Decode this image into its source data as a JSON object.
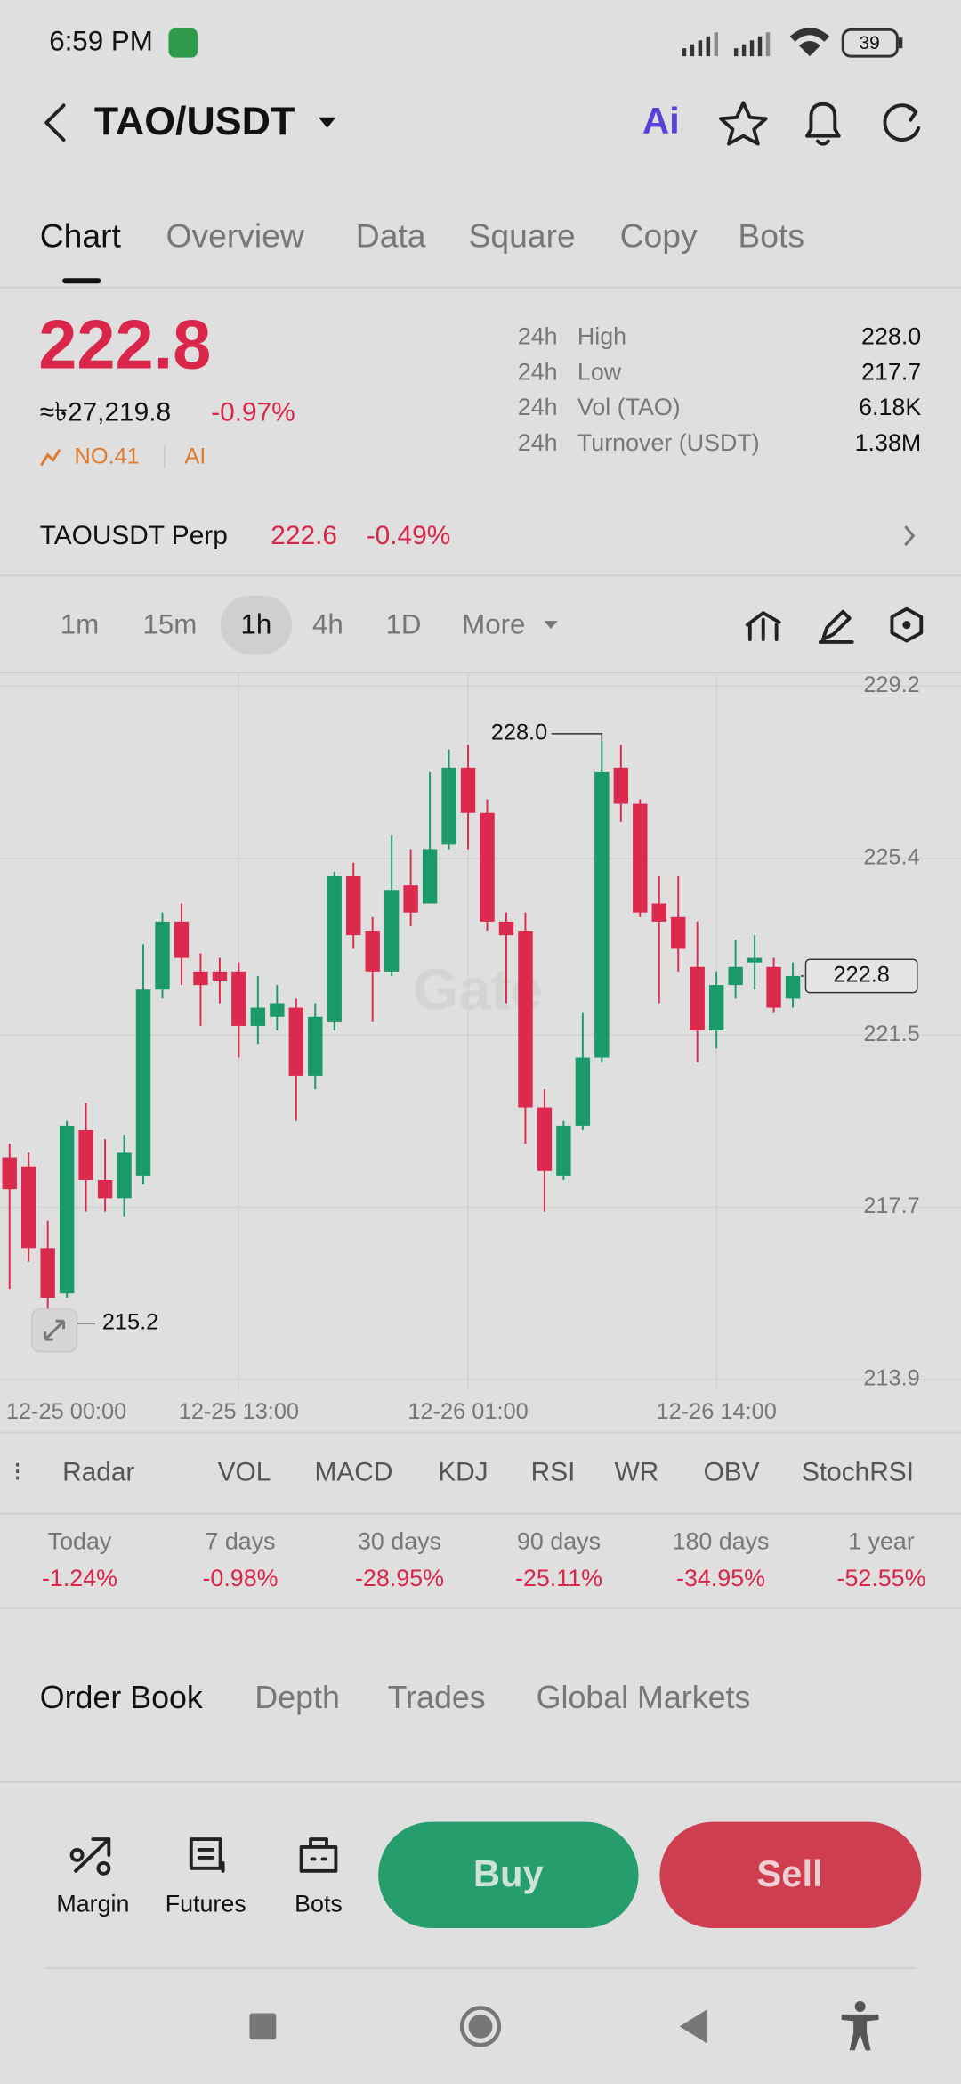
{
  "status_bar": {
    "time": "6:59 PM",
    "battery": "39"
  },
  "header": {
    "pair": "TAO/USDT",
    "ai": "Ai"
  },
  "tabs": [
    "Chart",
    "Overview",
    "Data",
    "Square",
    "Copy",
    "Bots"
  ],
  "price": {
    "last": "222.8",
    "fiat": "≈৳27,219.8",
    "change": "-0.97%",
    "rank": "NO.41",
    "ai": "AI"
  },
  "stats": [
    {
      "period": "24h",
      "name": "High",
      "value": "228.0"
    },
    {
      "period": "24h",
      "name": "Low",
      "value": "217.7"
    },
    {
      "period": "24h",
      "name": "Vol (TAO)",
      "value": "6.18K"
    },
    {
      "period": "24h",
      "name": "Turnover (USDT)",
      "value": "1.38M"
    }
  ],
  "perp": {
    "name": "TAOUSDT Perp",
    "price": "222.6",
    "change": "-0.49%"
  },
  "intervals": [
    "1m",
    "15m",
    "1h",
    "4h",
    "1D",
    "More"
  ],
  "chart_data": {
    "type": "candlestick",
    "watermark": "Gate",
    "up_color": "#1a9a68",
    "down_color": "#dc2a4f",
    "grid": true,
    "x": [
      0,
      1,
      2,
      3,
      4,
      5,
      6,
      7,
      8,
      9,
      10,
      11,
      12,
      13,
      14,
      15,
      16,
      17,
      18,
      19,
      20,
      21,
      22,
      23,
      24,
      25,
      26,
      27,
      28,
      29,
      30,
      31,
      32,
      33,
      34,
      35,
      36,
      37,
      38,
      39,
      40,
      41
    ],
    "open": [
      218.8,
      218.6,
      216.8,
      215.8,
      219.4,
      218.3,
      217.9,
      218.4,
      222.5,
      224.0,
      222.9,
      222.9,
      222.9,
      221.7,
      221.9,
      222.1,
      220.6,
      221.8,
      225.0,
      223.8,
      222.9,
      224.8,
      224.4,
      225.7,
      227.4,
      226.4,
      224.0,
      223.8,
      219.9,
      218.4,
      219.5,
      221.0,
      227.4,
      226.6,
      224.4,
      224.1,
      223.0,
      221.6,
      222.6,
      223.1,
      223.0,
      222.3
    ],
    "high": [
      219.1,
      218.9,
      217.4,
      219.6,
      220.0,
      219.2,
      219.3,
      223.5,
      224.2,
      224.4,
      223.3,
      223.2,
      223.1,
      222.8,
      222.6,
      222.3,
      222.2,
      225.1,
      225.3,
      224.1,
      225.9,
      225.6,
      227.3,
      227.8,
      227.9,
      226.7,
      224.2,
      224.2,
      220.3,
      219.6,
      222.0,
      228.0,
      227.9,
      226.7,
      225.0,
      225.0,
      224.0,
      222.9,
      223.6,
      223.7,
      223.2,
      223.1
    ],
    "low": [
      215.9,
      216.5,
      215.2,
      215.7,
      217.6,
      217.6,
      217.5,
      218.2,
      222.3,
      222.6,
      221.7,
      222.2,
      221.0,
      221.3,
      221.6,
      219.6,
      220.3,
      221.6,
      223.4,
      221.8,
      222.8,
      223.9,
      224.4,
      225.6,
      225.6,
      223.8,
      222.2,
      219.1,
      217.6,
      218.3,
      219.4,
      220.9,
      226.2,
      224.1,
      222.2,
      222.9,
      220.9,
      221.2,
      222.3,
      222.5,
      222.0,
      222.1
    ],
    "close": [
      218.1,
      216.8,
      215.7,
      219.5,
      218.3,
      217.9,
      218.9,
      222.5,
      224.0,
      223.2,
      222.6,
      222.7,
      221.7,
      222.1,
      222.2,
      220.6,
      221.9,
      225.0,
      223.7,
      222.9,
      224.7,
      224.2,
      225.6,
      227.4,
      226.4,
      224.0,
      223.7,
      219.9,
      218.5,
      219.5,
      221.0,
      227.3,
      226.6,
      224.2,
      224.0,
      223.4,
      221.6,
      222.6,
      223.0,
      223.2,
      222.1,
      222.8
    ],
    "xlim": [
      -0.5,
      49.8
    ],
    "xticks": [
      {
        "value": -1,
        "label": "12-25 00:00"
      },
      {
        "value": 12,
        "label": "12-25 13:00"
      },
      {
        "value": 24,
        "label": "12-26 01:00"
      },
      {
        "value": 37,
        "label": "12-26 14:00"
      }
    ],
    "ylim": [
      213.9,
      229.2
    ],
    "yticks": [
      229.2,
      225.4,
      221.5,
      217.7,
      213.9
    ],
    "high_label": {
      "value": 228.0,
      "label": "228.0"
    },
    "low_label": {
      "value": 215.2,
      "label": "215.2"
    },
    "last_price": {
      "value": 222.8,
      "label": "222.8"
    }
  },
  "indicators": [
    "Radar",
    "VOL",
    "MACD",
    "KDJ",
    "RSI",
    "WR",
    "OBV",
    "StochRSI"
  ],
  "performance": [
    {
      "period": "Today",
      "change": "-1.24%"
    },
    {
      "period": "7 days",
      "change": "-0.98%"
    },
    {
      "period": "30 days",
      "change": "-28.95%"
    },
    {
      "period": "90 days",
      "change": "-25.11%"
    },
    {
      "period": "180 days",
      "change": "-34.95%"
    },
    {
      "period": "1 year",
      "change": "-52.55%"
    }
  ],
  "book_tabs": [
    "Order Book",
    "Depth",
    "Trades",
    "Global Markets"
  ],
  "actions": [
    "Margin",
    "Futures",
    "Bots"
  ],
  "buy": "Buy",
  "sell": "Sell"
}
